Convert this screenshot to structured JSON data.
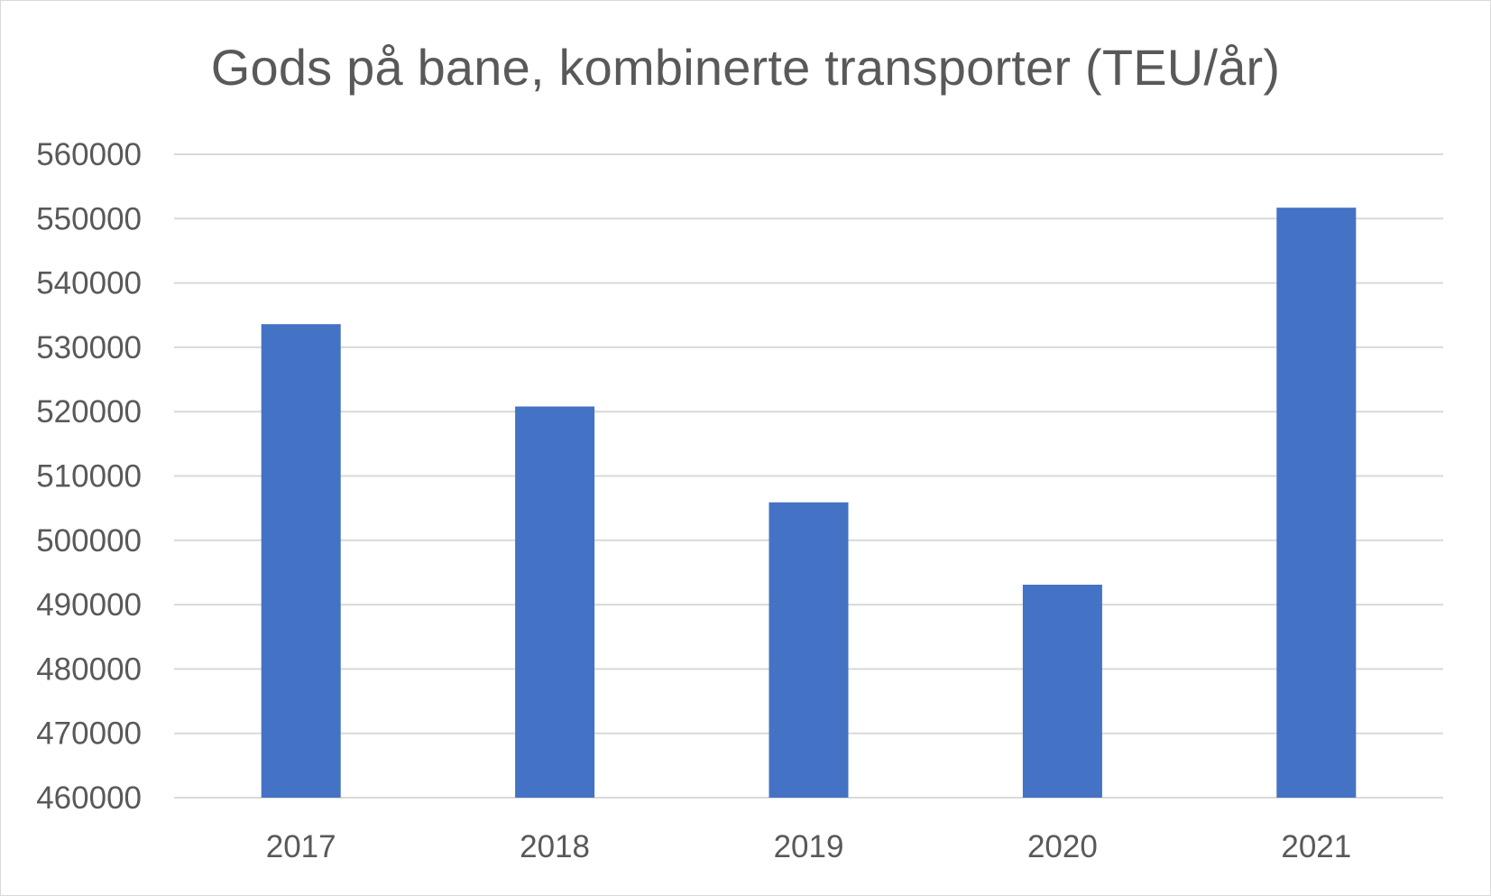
{
  "chart_data": {
    "type": "bar",
    "title": "Gods på bane, kombinerte transporter (TEU/år)",
    "xlabel": "",
    "ylabel": "",
    "categories": [
      "2017",
      "2018",
      "2019",
      "2020",
      "2021"
    ],
    "values": [
      533600,
      520800,
      505900,
      493100,
      551700
    ],
    "ylim": [
      460000,
      560000
    ],
    "yticks": [
      460000,
      470000,
      480000,
      490000,
      500000,
      510000,
      520000,
      530000,
      540000,
      550000,
      560000
    ],
    "ytick_labels": [
      "460000",
      "470000",
      "480000",
      "490000",
      "500000",
      "510000",
      "520000",
      "530000",
      "540000",
      "550000",
      "560000"
    ],
    "grid": true,
    "legend": "none",
    "bar_color": "#4472C4",
    "grid_color": "#d9d9d9",
    "text_color": "#595959"
  }
}
